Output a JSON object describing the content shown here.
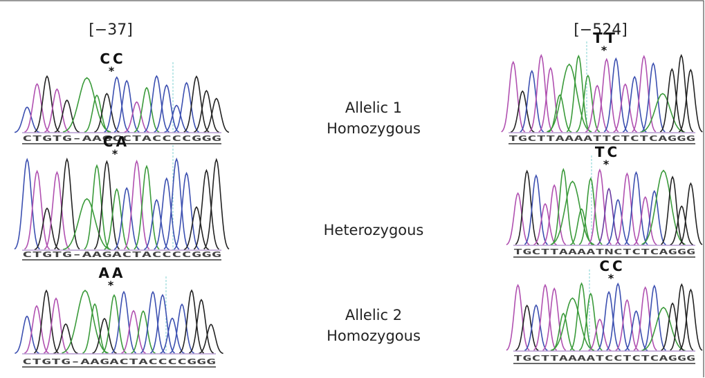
{
  "columns": [
    {
      "header": "[−37]",
      "panels": [
        {
          "genotype": "CC",
          "sequence": "CTGTG-AAGCCTACCCCGGG"
        },
        {
          "genotype": "CA",
          "sequence": "CTGTG-AAGACTACCCCGGG"
        },
        {
          "genotype": "AA",
          "sequence": "CTGTG-AAGACTACCCCGGG"
        }
      ]
    },
    {
      "header": "[−524]",
      "panels": [
        {
          "genotype": "TT",
          "sequence": "TGCTTAAAATTCTCTCAGGG"
        },
        {
          "genotype": "TC",
          "sequence": "TGCTTAAAATNCTCTCAGGG"
        },
        {
          "genotype": "CC",
          "sequence": "TGCTTAAAATCCTCTCAGGG"
        }
      ]
    }
  ],
  "row_labels": [
    {
      "lines": [
        "Allelic 1",
        "Homozygous"
      ]
    },
    {
      "lines": [
        "Heterozygous"
      ]
    },
    {
      "lines": [
        "Allelic 2",
        "Homozygous"
      ]
    }
  ]
}
